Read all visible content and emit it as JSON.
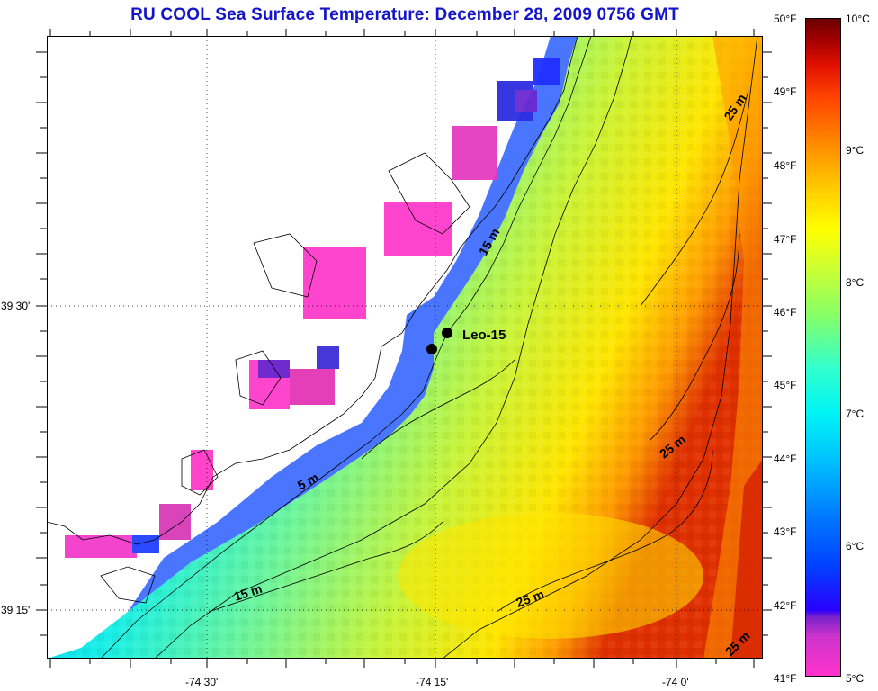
{
  "title": "RU COOL  Sea Surface Temperature:  December 28, 2009 0756 GMT",
  "map": {
    "station_label": "Leo-15",
    "contour_labels": [
      "15 m",
      "25 m",
      "5 m",
      "25 m",
      "15 m",
      "25 m",
      "25 m"
    ],
    "lon_labels": [
      "-74 30'",
      "-74 15'",
      "-74 0'"
    ],
    "lat_labels": [
      "39 30'",
      "39 15'"
    ]
  },
  "colorbar": {
    "fahrenheit": [
      "50°F",
      "49°F",
      "48°F",
      "47°F",
      "46°F",
      "45°F",
      "44°F",
      "43°F",
      "42°F",
      "41°F"
    ],
    "celsius": [
      "10°C",
      "9°C",
      "8°C",
      "7°C",
      "6°C",
      "5°C"
    ],
    "range_celsius": [
      5,
      10
    ],
    "colors": {
      "cold": "#ff33cc",
      "mid": "#00f5f5",
      "warm": "#ffff00",
      "hot": "#6a0000"
    }
  }
}
